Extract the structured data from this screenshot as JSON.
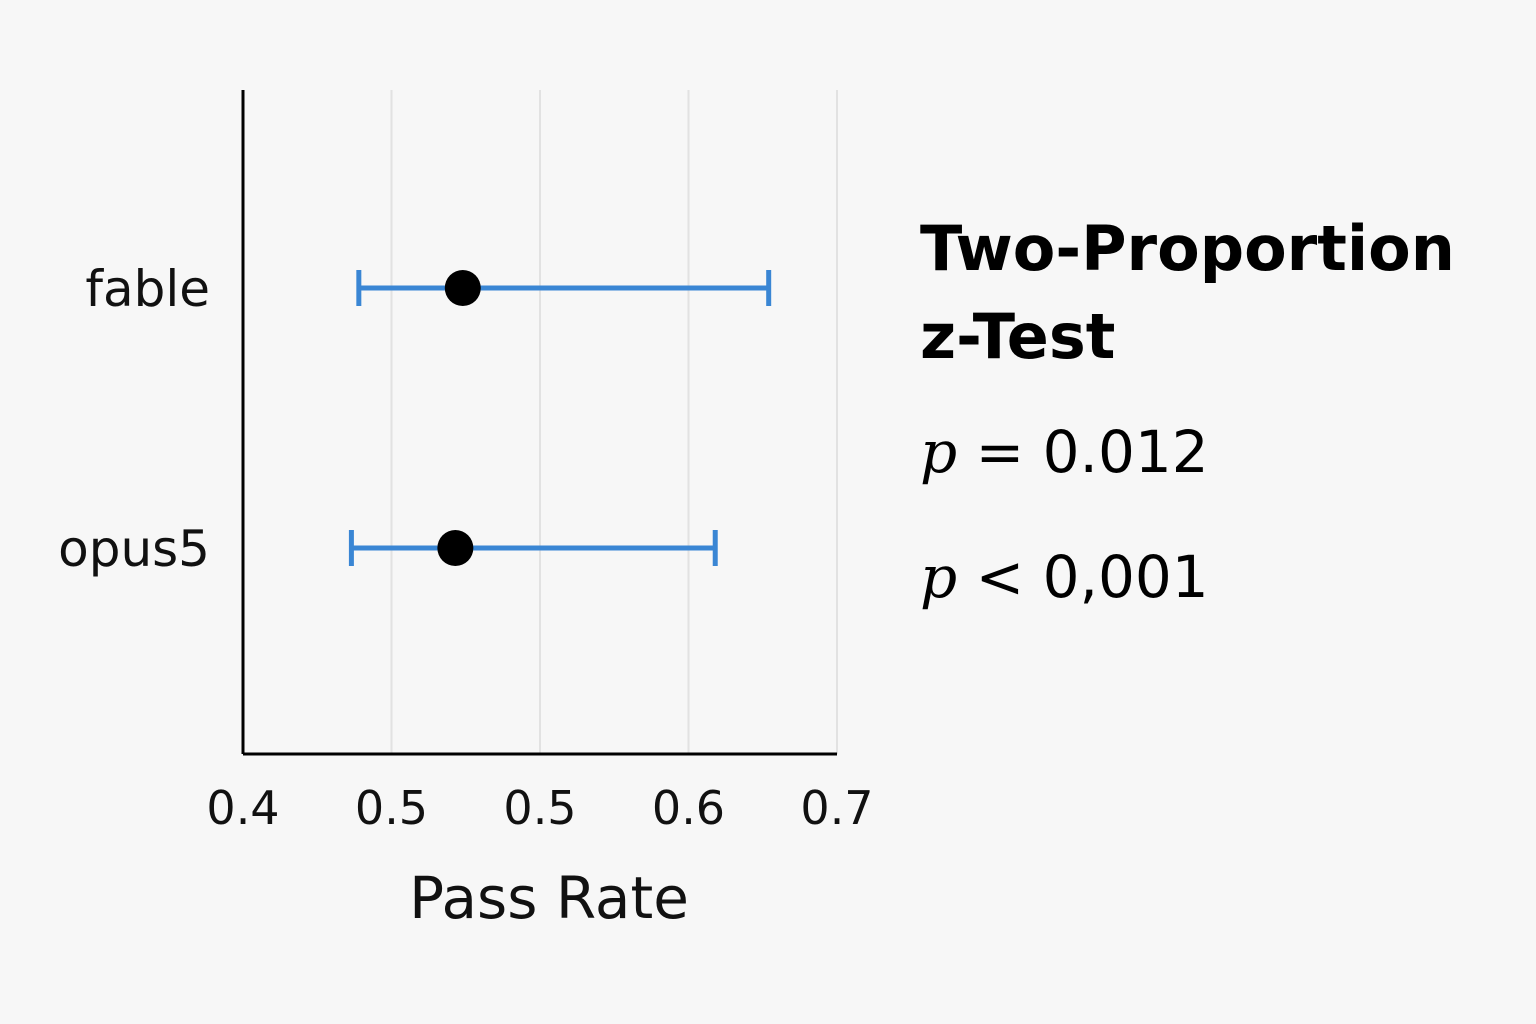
{
  "chart_data": {
    "type": "errorbar",
    "x_ticks": [
      "0.4",
      "0.5",
      "0.5",
      "0.6",
      "0.7"
    ],
    "xlim": [
      0.4,
      0.8
    ],
    "xlabel": "Pass Rate",
    "categories": [
      "fable",
      "opus5"
    ],
    "points": [
      {
        "label": "fable",
        "value": 0.548,
        "low": 0.478,
        "high": 0.754
      },
      {
        "label": "opus5",
        "value": 0.543,
        "low": 0.473,
        "high": 0.718
      }
    ],
    "grid": true
  },
  "side": {
    "title": "Two-Proportion\nz-Test",
    "stats": [
      {
        "symbol": "p",
        "text": " = 0.012"
      },
      {
        "symbol": "p",
        "text": " < 0,001"
      }
    ]
  },
  "colors": {
    "errorbar": "#3a86d4",
    "point": "#000000",
    "grid": "#e2e2e2",
    "axis": "#000000"
  }
}
